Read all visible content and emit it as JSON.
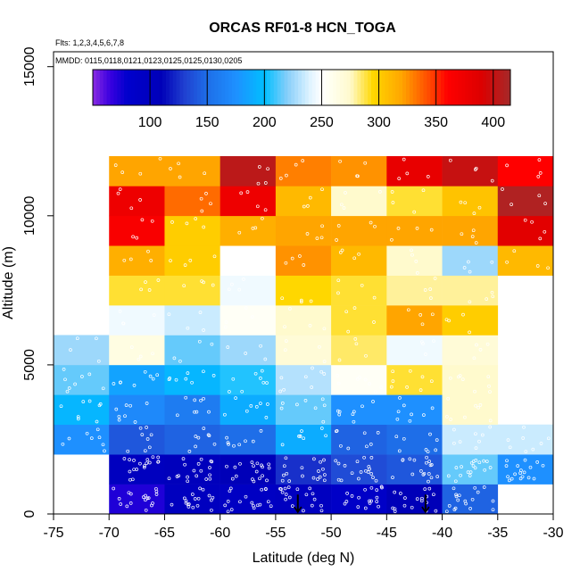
{
  "chart_data": {
    "type": "heatmap",
    "title": "ORCAS RF01-8 HCN_TOGA",
    "flights_label": "Flts: 1,2,3,4,5,6,7,8",
    "dates_label": "MMDD: 0115,0118,0121,0123,0125,0125,0130,0205",
    "xlabel": "Latitude (deg N)",
    "ylabel": "Altitude (m)",
    "xlim": [
      -75,
      -30
    ],
    "ylim": [
      0,
      15500
    ],
    "x_ticks": [
      -75,
      -70,
      -65,
      -60,
      -55,
      -50,
      -45,
      -40,
      -35,
      -30
    ],
    "x_tick_labels": [
      "-75",
      "-70",
      "-65",
      "-60",
      "-55",
      "-50",
      "-45",
      "-40",
      "-35",
      "-30"
    ],
    "y_ticks": [
      0,
      5000,
      10000,
      15000
    ],
    "y_tick_labels": [
      "0",
      "5000",
      "10000",
      "15000"
    ],
    "colorbar": {
      "range": [
        50,
        415
      ],
      "ticks": [
        100,
        150,
        200,
        250,
        300,
        350,
        400
      ],
      "tick_labels": [
        "100",
        "150",
        "200",
        "250",
        "300",
        "350",
        "400"
      ],
      "stops": [
        {
          "v": 50,
          "c": "#8a2be2"
        },
        {
          "v": 65,
          "c": "#3a00e0"
        },
        {
          "v": 80,
          "c": "#0000cd"
        },
        {
          "v": 110,
          "c": "#0000b8"
        },
        {
          "v": 130,
          "c": "#2040d0"
        },
        {
          "v": 150,
          "c": "#1e6ee8"
        },
        {
          "v": 175,
          "c": "#1e90ff"
        },
        {
          "v": 200,
          "c": "#00bfff"
        },
        {
          "v": 220,
          "c": "#87cefa"
        },
        {
          "v": 240,
          "c": "#e0f4ff"
        },
        {
          "v": 250,
          "c": "#ffffff"
        },
        {
          "v": 258,
          "c": "#fffff0"
        },
        {
          "v": 275,
          "c": "#fffacd"
        },
        {
          "v": 295,
          "c": "#ffd700"
        },
        {
          "v": 320,
          "c": "#ffa500"
        },
        {
          "v": 345,
          "c": "#ff4500"
        },
        {
          "v": 360,
          "c": "#ff0000"
        },
        {
          "v": 390,
          "c": "#dc0000"
        },
        {
          "v": 415,
          "c": "#a52a2a"
        }
      ]
    },
    "cell_size": {
      "lat": 5,
      "alt": 1000
    },
    "cells": [
      [
        -75,
        0,
        null
      ],
      [
        -70,
        0,
        72
      ],
      [
        -65,
        0,
        100
      ],
      [
        -60,
        0,
        95
      ],
      [
        -55,
        0,
        98
      ],
      [
        -50,
        0,
        88
      ],
      [
        -45,
        0,
        110
      ],
      [
        -40,
        0,
        145
      ],
      [
        -35,
        0,
        null
      ],
      [
        -75,
        1000,
        null
      ],
      [
        -70,
        1000,
        100
      ],
      [
        -65,
        1000,
        105
      ],
      [
        -60,
        1000,
        110
      ],
      [
        -55,
        1000,
        125
      ],
      [
        -50,
        1000,
        135
      ],
      [
        -45,
        1000,
        140
      ],
      [
        -40,
        1000,
        215
      ],
      [
        -35,
        1000,
        175
      ],
      [
        -75,
        2000,
        175
      ],
      [
        -70,
        2000,
        140
      ],
      [
        -65,
        2000,
        145
      ],
      [
        -60,
        2000,
        150
      ],
      [
        -55,
        2000,
        190
      ],
      [
        -50,
        2000,
        145
      ],
      [
        -45,
        2000,
        150
      ],
      [
        -40,
        2000,
        235
      ],
      [
        -35,
        2000,
        235
      ],
      [
        -75,
        3000,
        195
      ],
      [
        -70,
        3000,
        170
      ],
      [
        -65,
        3000,
        160
      ],
      [
        -60,
        3000,
        190
      ],
      [
        -55,
        3000,
        215
      ],
      [
        -50,
        3000,
        175
      ],
      [
        -45,
        3000,
        175
      ],
      [
        -40,
        3000,
        275
      ],
      [
        -35,
        3000,
        null
      ],
      [
        -75,
        4000,
        215
      ],
      [
        -70,
        4000,
        185
      ],
      [
        -65,
        4000,
        195
      ],
      [
        -60,
        4000,
        205
      ],
      [
        -55,
        4000,
        230
      ],
      [
        -50,
        4000,
        255
      ],
      [
        -45,
        4000,
        290
      ],
      [
        -40,
        4000,
        275
      ],
      [
        -35,
        4000,
        null
      ],
      [
        -75,
        5000,
        225
      ],
      [
        -70,
        5000,
        265
      ],
      [
        -65,
        5000,
        215
      ],
      [
        -60,
        5000,
        225
      ],
      [
        -55,
        5000,
        270
      ],
      [
        -50,
        5000,
        285
      ],
      [
        -45,
        5000,
        245
      ],
      [
        -40,
        5000,
        270
      ],
      [
        -35,
        5000,
        null
      ],
      [
        -75,
        6000,
        null
      ],
      [
        -70,
        6000,
        245
      ],
      [
        -65,
        6000,
        235
      ],
      [
        -60,
        6000,
        255
      ],
      [
        -55,
        6000,
        275
      ],
      [
        -50,
        6000,
        290
      ],
      [
        -45,
        6000,
        320
      ],
      [
        -40,
        6000,
        300
      ],
      [
        -35,
        6000,
        null
      ],
      [
        -75,
        7000,
        null
      ],
      [
        -70,
        7000,
        290
      ],
      [
        -65,
        7000,
        290
      ],
      [
        -60,
        7000,
        245
      ],
      [
        -55,
        7000,
        295
      ],
      [
        -50,
        7000,
        290
      ],
      [
        -45,
        7000,
        280
      ],
      [
        -40,
        7000,
        280
      ],
      [
        -35,
        7000,
        null
      ],
      [
        -75,
        8000,
        null
      ],
      [
        -70,
        8000,
        315
      ],
      [
        -65,
        8000,
        300
      ],
      [
        -60,
        8000,
        250
      ],
      [
        -55,
        8000,
        325
      ],
      [
        -50,
        8000,
        310
      ],
      [
        -45,
        8000,
        275
      ],
      [
        -40,
        8000,
        225
      ],
      [
        -35,
        8000,
        310
      ],
      [
        -75,
        9000,
        null
      ],
      [
        -70,
        9000,
        365
      ],
      [
        -65,
        9000,
        300
      ],
      [
        -60,
        9000,
        315
      ],
      [
        -55,
        9000,
        320
      ],
      [
        -50,
        9000,
        320
      ],
      [
        -45,
        9000,
        320
      ],
      [
        -40,
        9000,
        320
      ],
      [
        -35,
        9000,
        385
      ],
      [
        -75,
        10000,
        null
      ],
      [
        -70,
        10000,
        375
      ],
      [
        -65,
        10000,
        335
      ],
      [
        -60,
        10000,
        375
      ],
      [
        -55,
        10000,
        310
      ],
      [
        -50,
        10000,
        275
      ],
      [
        -45,
        10000,
        290
      ],
      [
        -40,
        10000,
        305
      ],
      [
        -35,
        10000,
        410
      ],
      [
        -75,
        11000,
        null
      ],
      [
        -70,
        11000,
        320
      ],
      [
        -65,
        11000,
        320
      ],
      [
        -60,
        11000,
        405
      ],
      [
        -55,
        11000,
        330
      ],
      [
        -50,
        11000,
        325
      ],
      [
        -45,
        11000,
        380
      ],
      [
        -40,
        11000,
        400
      ],
      [
        -35,
        11000,
        360
      ]
    ],
    "arrow_markers_lat": [
      -53,
      -41.5
    ]
  }
}
